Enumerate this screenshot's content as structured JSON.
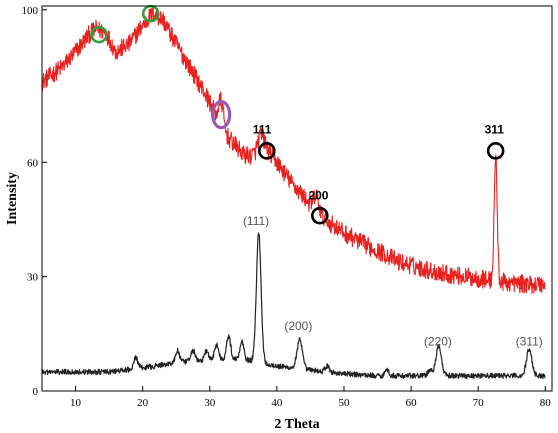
{
  "chart_data": {
    "type": "line",
    "xlabel": "2 Theta",
    "ylabel": "Intensity",
    "xlim": [
      5,
      81
    ],
    "ylim": [
      0,
      101
    ],
    "x_ticks": [
      10,
      20,
      30,
      40,
      50,
      60,
      70,
      80
    ],
    "y_ticks": [
      0,
      30,
      60,
      100
    ],
    "grid": false,
    "series": [
      {
        "color": "#e8201e",
        "noise": 2.4,
        "points": [
          [
            5,
            81.0
          ],
          [
            8,
            85.0
          ],
          [
            10,
            89.0
          ],
          [
            12,
            93.5
          ],
          [
            13,
            95.0
          ],
          [
            14.5,
            94.0
          ],
          [
            16,
            89.0
          ],
          [
            18,
            91.0
          ],
          [
            20,
            96.0
          ],
          [
            21.5,
            99.0
          ],
          [
            23,
            97.5
          ],
          [
            25,
            91.0
          ],
          [
            27,
            85.0
          ],
          [
            29,
            79.0
          ],
          [
            30.5,
            74.0
          ],
          [
            32,
            68.0
          ],
          [
            33.5,
            65.0
          ],
          [
            35,
            62.0
          ],
          [
            37,
            61.5
          ],
          [
            38.5,
            63.0
          ],
          [
            40,
            60.0
          ],
          [
            42,
            55.0
          ],
          [
            44,
            51.0
          ],
          [
            46,
            47.0
          ],
          [
            48,
            44.0
          ],
          [
            50,
            41.5
          ],
          [
            53,
            38.5
          ],
          [
            56,
            36.0
          ],
          [
            58,
            34.0
          ],
          [
            60,
            33.0
          ],
          [
            63,
            31.5
          ],
          [
            66,
            30.5
          ],
          [
            70,
            29.5
          ],
          [
            72,
            29.0
          ],
          [
            74,
            28.5
          ],
          [
            77,
            28.0
          ],
          [
            80,
            28.0
          ]
        ],
        "peaks": [
          {
            "x": 31.7,
            "height": 7,
            "width": 0.35
          },
          {
            "x": 37.6,
            "height": 5,
            "width": 0.5
          },
          {
            "x": 45.9,
            "height": 4,
            "width": 0.35
          },
          {
            "x": 72.6,
            "height": 33,
            "width": 0.22
          }
        ]
      },
      {
        "color": "#222222",
        "noise": 0.7,
        "points": [
          [
            5,
            5.0
          ],
          [
            15,
            5.0
          ],
          [
            20,
            6.0
          ],
          [
            25,
            7.5
          ],
          [
            30,
            8.0
          ],
          [
            33,
            8.5
          ],
          [
            36,
            8.0
          ],
          [
            40,
            6.5
          ],
          [
            45,
            5.5
          ],
          [
            50,
            4.5
          ],
          [
            55,
            4.0
          ],
          [
            60,
            4.0
          ],
          [
            65,
            4.0
          ],
          [
            70,
            4.0
          ],
          [
            75,
            4.0
          ],
          [
            80,
            4.0
          ]
        ],
        "peaks": [
          {
            "x": 19.0,
            "height": 3,
            "width": 0.3
          },
          {
            "x": 25.2,
            "height": 3,
            "width": 0.3
          },
          {
            "x": 27.5,
            "height": 3,
            "width": 0.3
          },
          {
            "x": 29.5,
            "height": 2.5,
            "width": 0.3
          },
          {
            "x": 31.0,
            "height": 4,
            "width": 0.3
          },
          {
            "x": 32.8,
            "height": 6,
            "width": 0.3
          },
          {
            "x": 34.8,
            "height": 5,
            "width": 0.3
          },
          {
            "x": 37.3,
            "height": 34,
            "width": 0.35
          },
          {
            "x": 43.4,
            "height": 7.5,
            "width": 0.4
          },
          {
            "x": 47.5,
            "height": 1.5,
            "width": 0.3
          },
          {
            "x": 56.4,
            "height": 1.5,
            "width": 0.3
          },
          {
            "x": 62.8,
            "height": 1.5,
            "width": 0.3
          },
          {
            "x": 64.1,
            "height": 8,
            "width": 0.4
          },
          {
            "x": 77.6,
            "height": 7,
            "width": 0.4
          }
        ]
      }
    ],
    "markers": [
      {
        "x": 13.5,
        "y": 93.5,
        "color": "#2e9e3e",
        "shape": "ring"
      },
      {
        "x": 21.2,
        "y": 99.0,
        "color": "#2e9e3e",
        "shape": "ring"
      },
      {
        "x": 31.7,
        "y": 72.5,
        "color": "#9b59b6",
        "shape": "oval"
      },
      {
        "x": 38.5,
        "y": 63.0,
        "color": "#000000",
        "shape": "ring"
      },
      {
        "x": 46.4,
        "y": 46.0,
        "color": "#000000",
        "shape": "ring"
      },
      {
        "x": 72.6,
        "y": 63.0,
        "color": "#000000",
        "shape": "ring"
      }
    ],
    "annotations": [
      {
        "text": "111",
        "x": 37.8,
        "y": 67.5,
        "style": "bold"
      },
      {
        "text": "200",
        "x": 46.2,
        "y": 50.3,
        "style": "bold"
      },
      {
        "text": "311",
        "x": 72.4,
        "y": 67.5,
        "style": "bold"
      },
      {
        "text": "(111)",
        "x": 36.9,
        "y": 43.5,
        "style": "gray"
      },
      {
        "text": "(200)",
        "x": 43.2,
        "y": 16.0,
        "style": "gray"
      },
      {
        "text": "(220)",
        "x": 64.0,
        "y": 12.0,
        "style": "gray"
      },
      {
        "text": "(311)",
        "x": 77.6,
        "y": 12.0,
        "style": "gray"
      }
    ]
  }
}
